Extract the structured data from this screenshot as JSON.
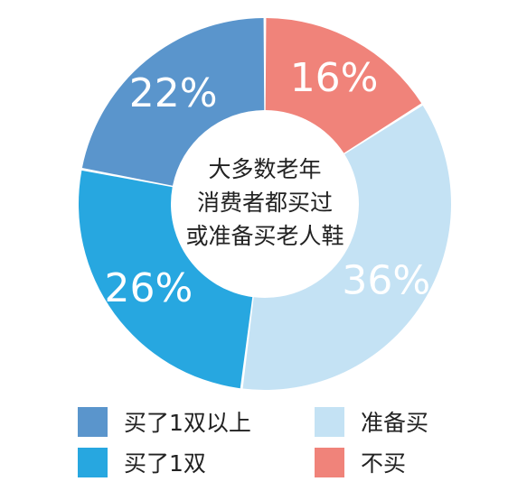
{
  "chart_data": {
    "type": "pie",
    "donut": true,
    "center_text": [
      "大多数老年",
      "消费者都买过",
      "或准备买老人鞋"
    ],
    "series": [
      {
        "name": "不买",
        "value": 16,
        "label": "16%",
        "color": "#f0837a"
      },
      {
        "name": "准备买",
        "value": 36,
        "label": "36%",
        "color": "#c4e2f4"
      },
      {
        "name": "买了1双",
        "value": 26,
        "label": "26%",
        "color": "#27a7e0"
      },
      {
        "name": "买了1双以上",
        "value": 22,
        "label": "22%",
        "color": "#5a95cc"
      }
    ],
    "legend": {
      "placement": "bottom",
      "items": [
        {
          "label": "买了1双以上",
          "color": "#5a95cc"
        },
        {
          "label": "准备买",
          "color": "#c4e2f4"
        },
        {
          "label": "买了1双",
          "color": "#27a7e0"
        },
        {
          "label": "不买",
          "color": "#f0837a"
        }
      ]
    }
  }
}
